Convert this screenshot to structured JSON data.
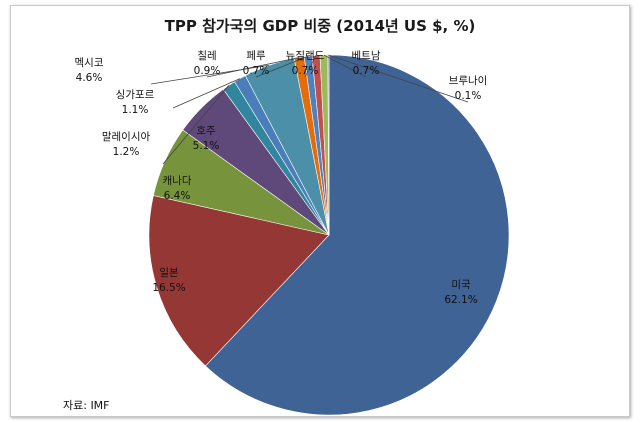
{
  "chart_data": {
    "type": "pie",
    "title": "TPP 참가국의 GDP 비중 (2014년 US $, %)",
    "source": "자료: IMF",
    "unit": "%",
    "slices": [
      {
        "label": "미국",
        "value": 62.1,
        "value_text": "62.1%",
        "color": "#3f6394"
      },
      {
        "label": "일본",
        "value": 16.5,
        "value_text": "16.5%",
        "color": "#953734"
      },
      {
        "label": "캐나다",
        "value": 6.4,
        "value_text": "6.4%",
        "color": "#77933c"
      },
      {
        "label": "호주",
        "value": 5.1,
        "value_text": "5.1%",
        "color": "#5f497a"
      },
      {
        "label": "말레이시아",
        "value": 1.2,
        "value_text": "1.2%",
        "color": "#31859c"
      },
      {
        "label": "싱가포르",
        "value": 1.1,
        "value_text": "1.1%",
        "color": "#4a7ebb"
      },
      {
        "label": "멕시코",
        "value": 4.6,
        "value_text": "4.6%",
        "color": "#4b8fa8"
      },
      {
        "label": "칠레",
        "value": 0.9,
        "value_text": "0.9%",
        "color": "#e46c0a"
      },
      {
        "label": "페루",
        "value": 0.7,
        "value_text": "0.7%",
        "color": "#4f81bd"
      },
      {
        "label": "뉴질랜드",
        "value": 0.7,
        "value_text": "0.7%",
        "color": "#c0504d"
      },
      {
        "label": "베트남",
        "value": 0.7,
        "value_text": "0.7%",
        "color": "#9bbb59"
      },
      {
        "label": "브루나이",
        "value": 0.1,
        "value_text": "0.1%",
        "color": "#8064a2"
      }
    ]
  }
}
